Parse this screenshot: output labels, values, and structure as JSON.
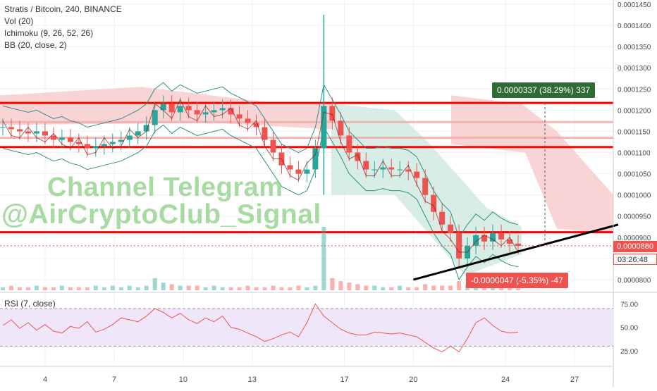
{
  "legend": {
    "title": "Stratis / Bitcoin, 240, BINANCE",
    "vol": "Vol (20)",
    "ichimoku": "Ichimoku (9, 26, 52, 26)",
    "bb": "BB (20, close, 2)"
  },
  "rsi_label": "RSI (7, close)",
  "watermark": {
    "line1": "Channel Telegram",
    "line2": "@AirCryptoClub_Signal"
  },
  "badges": {
    "up": "0.0000337 (38.29%) 337",
    "down": "-0.0000047 (-5.35%) -47"
  },
  "price_tags": {
    "current": "0.0000880",
    "countdown": "03:26:48"
  },
  "colors": {
    "up": "#26a69a",
    "down": "#ef5350",
    "level_line": "#ff0000",
    "trend_line": "#000000",
    "cloud_red": "#f8c9c9",
    "cloud_green": "#cde9df",
    "rsi_band": "#f0e6fa",
    "bb_line": "#2f8f8a",
    "ichimoku_line": "#8b1a1a"
  },
  "chart_data": {
    "type": "line",
    "symbol": "Stratis / Bitcoin",
    "interval": "240",
    "exchange": "BINANCE",
    "x_ticks": [
      "4",
      "7",
      "10",
      "13",
      "17",
      "20",
      "24",
      "27"
    ],
    "y_ticks": [
      "0.0000800",
      "0.0000850",
      "0.0000900",
      "0.0000950",
      "0.0001000",
      "0.0001050",
      "0.0001100",
      "0.0001150",
      "0.0001200",
      "0.0001250",
      "0.0001300",
      "0.0001350",
      "0.0001400",
      "0.0001450"
    ],
    "ylim": [
      7.75e-05,
      0.000146
    ],
    "horizontal_levels": [
      0.0001217,
      0.0001113,
      9.12e-05
    ],
    "pink_levels": [
      0.0001172,
      0.0001135
    ],
    "trendline": {
      "from": {
        "day": 20.0,
        "price": 8e-05
      },
      "to": {
        "day": 28.9,
        "price": 9.3e-05
      }
    },
    "close_series": [
      0.000116,
      0.0001155,
      0.000115,
      0.0001145,
      0.000115,
      0.000114,
      0.000113,
      0.0001135,
      0.0001125,
      0.000112,
      0.000111,
      0.0001115,
      0.000112,
      0.0001125,
      0.000113,
      0.000114,
      0.000115,
      0.0001165,
      0.00012,
      0.0001215,
      0.0001195,
      0.000121,
      0.00012,
      0.000119,
      0.0001195,
      0.00012,
      0.0001205,
      0.000119,
      0.000118,
      0.000117,
      0.000116,
      0.000113,
      0.00011,
      0.000107,
      0.000106,
      0.000105,
      0.000106,
      0.000111,
      0.000121,
      0.0001175,
      0.000114,
      0.00011,
      0.000108,
      0.000106,
      0.000106,
      0.0001065,
      0.000106,
      0.000106,
      0.0001055,
      0.000104,
      0.0001,
      9.6e-05,
      9.3e-05,
      9.1e-05,
      8.5e-05,
      8.8e-05,
      9.05e-05,
      8.9e-05,
      9.1e-05,
      8.95e-05,
      8.85e-05,
      8.8e-05
    ],
    "volume_series": [
      2,
      3,
      2,
      2,
      3,
      2,
      2,
      3,
      2,
      2,
      2,
      3,
      2,
      3,
      2,
      3,
      2,
      3,
      8,
      5,
      4,
      3,
      3,
      3,
      2,
      3,
      2,
      2,
      2,
      3,
      2,
      2,
      3,
      2,
      2,
      3,
      2,
      3,
      42,
      8,
      6,
      5,
      4,
      3,
      3,
      2,
      2,
      3,
      2,
      2,
      4,
      3,
      3,
      3,
      6,
      4,
      4,
      3,
      3,
      3,
      2,
      2
    ],
    "rsi": {
      "label": "RSI (7, close)",
      "levels": [
        70,
        30
      ],
      "y_ticks": [
        "25.00",
        "50.00",
        "75.00"
      ],
      "ylim": [
        10,
        85
      ],
      "values": [
        52,
        58,
        49,
        55,
        47,
        53,
        46,
        44,
        51,
        49,
        56,
        45,
        48,
        53,
        60,
        58,
        56,
        62,
        70,
        66,
        60,
        65,
        58,
        54,
        60,
        56,
        62,
        50,
        48,
        44,
        40,
        35,
        38,
        42,
        45,
        40,
        55,
        75,
        62,
        55,
        48,
        44,
        42,
        42,
        45,
        44,
        43,
        44,
        42,
        40,
        34,
        28,
        24,
        30,
        24,
        38,
        55,
        60,
        52,
        46,
        44,
        45
      ]
    },
    "measure_up": "0.0000337 (38.29%) 337",
    "measure_down": "-0.0000047 (-5.35%) -47"
  }
}
